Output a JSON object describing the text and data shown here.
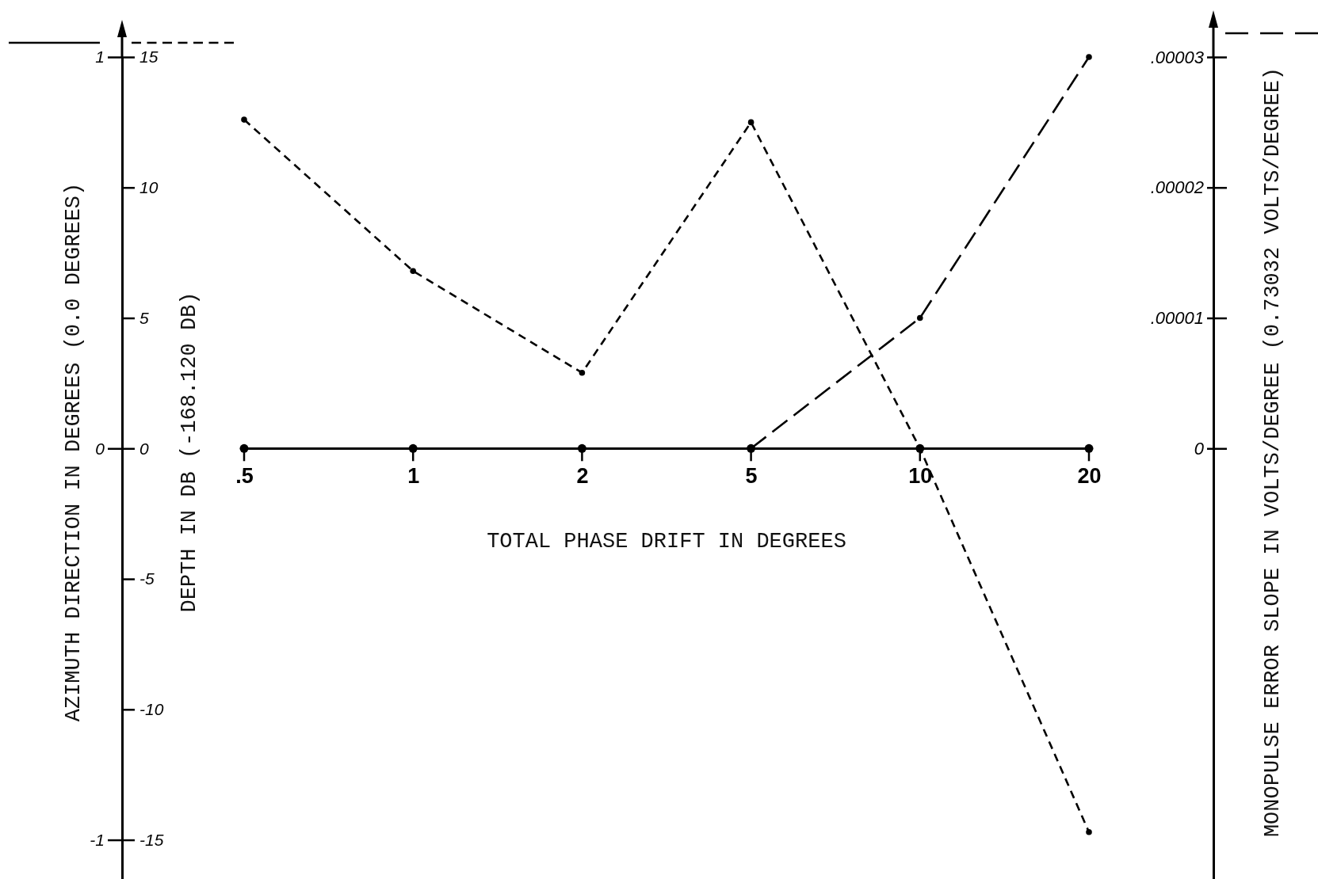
{
  "chart_data": {
    "type": "line",
    "categories": [
      ".5",
      "1",
      "2",
      "5",
      "10",
      "20"
    ],
    "xlabel": "TOTAL PHASE DRIFT IN DEGREES",
    "ylabel": "AZIMUTH DIRECTION IN DEGREES (0.0 DEGREES)",
    "y2label": "DEPTH IN DB (-168.120 DB)",
    "y3label": "MONOPULSE ERROR SLOPE IN VOLTS/DEGREE (0.73032 VOLTS/DEGREE)",
    "ylim": [
      -1.1,
      1
    ],
    "yticks": [
      -1,
      0,
      1
    ],
    "y2lim": [
      -16.5,
      15
    ],
    "y2ticks": [
      -15,
      -10,
      -5,
      0,
      5,
      10,
      15
    ],
    "y3lim": [
      -3.3e-05,
      3e-05
    ],
    "y3ticks": [
      0,
      {
        "value": 1e-05,
        "label": ".00001"
      },
      {
        "value": 2e-05,
        "label": ".00002"
      },
      {
        "value": 3e-05,
        "label": ".00003"
      }
    ],
    "marker": "circle",
    "series": [
      {
        "color": "#000000",
        "line_style": "solid",
        "values": [
          0,
          0,
          0,
          0,
          0,
          0
        ]
      },
      {
        "color": "#000000",
        "line_style": "dashed",
        "axis": "y2",
        "values": [
          12.6,
          6.8,
          2.9,
          12.5,
          0,
          -14.7
        ]
      },
      {
        "color": "#000000",
        "line_style": "dashed",
        "axis": "y3",
        "values": [
          null,
          null,
          null,
          0,
          1e-05,
          3e-05
        ]
      }
    ]
  }
}
